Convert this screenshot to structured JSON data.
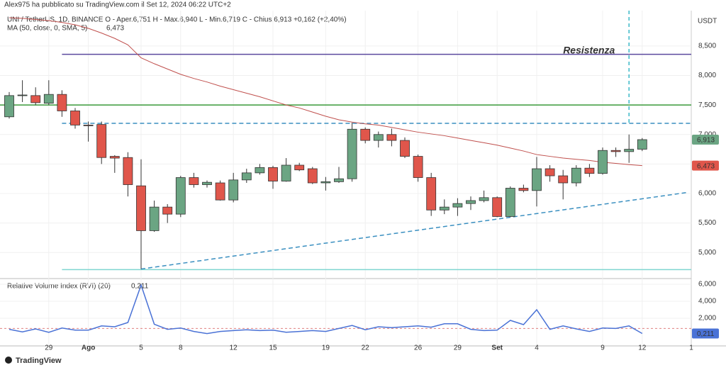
{
  "header": {
    "author": "Alex975 ha pubblicato su TradingView.com il Set 12, 2024 06:22 UTC+2",
    "brand": "TradingView"
  },
  "chart_data": {
    "type": "candlestick",
    "legend": "UNI / TetherUS, 1D, BINANCE  O - Aper.6,751  H - Max.6,940  L - Min.6,719  C - Chius.6,913  +0,162 (+2,40%)",
    "ma_legend": "MA (50, close, 0, SMA, 5)",
    "ma_value_label": "6,473",
    "y_unit": "USDT",
    "categories": [
      null,
      null,
      null,
      "29",
      null,
      null,
      "Ago",
      null,
      null,
      null,
      "5",
      null,
      null,
      "8",
      null,
      null,
      null,
      "12",
      null,
      null,
      "15",
      null,
      null,
      null,
      "19",
      null,
      null,
      "22",
      null,
      null,
      null,
      "26",
      null,
      null,
      "29",
      null,
      null,
      "Set",
      null,
      null,
      "4",
      null,
      null,
      null,
      null,
      "9",
      null,
      null,
      "12"
    ],
    "axis_end_label": "1",
    "open": [
      7.3,
      7.66,
      7.66,
      7.53,
      7.68,
      7.4,
      7.16,
      7.17,
      6.63,
      6.61,
      6.13,
      5.37,
      5.77,
      5.65,
      6.27,
      6.15,
      6.18,
      5.89,
      6.23,
      6.35,
      6.44,
      6.21,
      6.48,
      6.42,
      6.18,
      6.2,
      6.25,
      7.09,
      6.9,
      7.0,
      6.9,
      6.63,
      6.27,
      5.72,
      5.77,
      5.83,
      5.88,
      5.93,
      5.61,
      6.09,
      6.05,
      6.42,
      6.3,
      6.18,
      6.43,
      6.34,
      6.73,
      6.71,
      6.751
    ],
    "high": [
      7.72,
      7.92,
      7.8,
      7.92,
      7.75,
      7.45,
      7.22,
      7.22,
      6.65,
      6.7,
      6.58,
      5.88,
      5.82,
      6.3,
      6.35,
      6.22,
      6.22,
      6.35,
      6.42,
      6.5,
      6.47,
      6.6,
      6.52,
      6.45,
      6.28,
      6.45,
      7.2,
      7.12,
      7.05,
      7.1,
      6.95,
      6.66,
      6.35,
      5.9,
      5.92,
      5.95,
      6.05,
      5.95,
      6.12,
      6.15,
      6.62,
      6.48,
      6.4,
      6.48,
      6.5,
      6.78,
      6.78,
      7.0,
      6.94
    ],
    "low": [
      7.27,
      7.55,
      7.5,
      7.5,
      7.3,
      7.1,
      6.88,
      6.5,
      6.35,
      5.95,
      4.72,
      5.35,
      5.5,
      5.6,
      6.1,
      6.1,
      5.88,
      5.85,
      6.18,
      6.32,
      6.08,
      6.2,
      6.38,
      6.16,
      6.05,
      6.18,
      6.2,
      6.85,
      6.78,
      6.8,
      6.6,
      6.2,
      5.62,
      5.65,
      5.62,
      5.72,
      5.85,
      5.6,
      5.6,
      6.02,
      5.78,
      6.2,
      5.9,
      6.12,
      6.28,
      6.32,
      6.62,
      6.52,
      6.719
    ],
    "close": [
      7.66,
      7.67,
      7.54,
      7.68,
      7.4,
      7.16,
      7.15,
      6.61,
      6.6,
      6.15,
      5.37,
      5.77,
      5.65,
      6.27,
      6.15,
      6.19,
      5.89,
      6.23,
      6.35,
      6.44,
      6.21,
      6.48,
      6.4,
      6.18,
      6.2,
      6.25,
      7.09,
      6.9,
      7.0,
      6.9,
      6.63,
      6.27,
      5.72,
      5.77,
      5.83,
      5.88,
      5.93,
      5.61,
      6.09,
      6.05,
      6.42,
      6.3,
      6.18,
      6.43,
      6.34,
      6.73,
      6.71,
      6.75,
      6.913
    ],
    "ma": [
      8.98,
      8.97,
      8.95,
      8.93,
      8.9,
      8.86,
      8.8,
      8.72,
      8.63,
      8.52,
      8.3,
      8.2,
      8.11,
      8.02,
      7.95,
      7.89,
      7.82,
      7.76,
      7.7,
      7.64,
      7.57,
      7.5,
      7.45,
      7.38,
      7.31,
      7.25,
      7.21,
      7.18,
      7.16,
      7.12,
      7.08,
      7.04,
      7.01,
      6.98,
      6.94,
      6.9,
      6.86,
      6.82,
      6.77,
      6.72,
      6.66,
      6.63,
      6.6,
      6.58,
      6.56,
      6.53,
      6.51,
      6.49,
      6.473
    ],
    "up_color": "#6ba583",
    "down_color": "#e0564b",
    "ma_color": "#c0504d",
    "last_price": {
      "value": 6.913,
      "label": "6,913"
    },
    "ma_last": {
      "value": 6.473,
      "label": "6,473"
    },
    "ylim": [
      4.57,
      9.1
    ],
    "yticks": [
      {
        "value": 5,
        "label": "5,000"
      },
      {
        "value": 5.5,
        "label": "5,500"
      },
      {
        "value": 6,
        "label": "6,000"
      },
      {
        "value": 6.5,
        "label": "6,500"
      },
      {
        "value": 7,
        "label": "7,000"
      },
      {
        "value": 7.5,
        "label": "7,500"
      },
      {
        "value": 8,
        "label": "8,000"
      },
      {
        "value": 8.5,
        "label": "8,500"
      }
    ],
    "grid": true,
    "hlines": [
      {
        "value": 8.36,
        "color": "#5b4a9e",
        "from": 4,
        "dashed": false
      },
      {
        "value": 7.5,
        "color": "#3a9a3a",
        "from": 0,
        "dashed": false
      },
      {
        "value": 7.19,
        "color": "#3a8fc0",
        "from": 4,
        "dashed": true
      },
      {
        "value": 4.71,
        "color": "#7fd6d0",
        "from": 4,
        "dashed": false
      }
    ],
    "annotation": {
      "text": "Resistenza",
      "value": 8.36,
      "at": 42,
      "color": "#a040c0"
    },
    "trendline": {
      "x": [
        10,
        51.5
      ],
      "y": [
        4.72,
        6.02
      ],
      "color": "#3a8fc0"
    },
    "vline": {
      "at": 47,
      "value": 7.19,
      "color": "#3ab8c8"
    },
    "rvi": {
      "name": "Relative Volume Index (RVI) (20)",
      "value_label": "0,211",
      "color": "#4a72d6",
      "level": 0.8,
      "values": [
        0.7,
        0.4,
        0.75,
        0.35,
        0.85,
        0.6,
        0.6,
        1.1,
        1.0,
        1.5,
        5.9,
        1.3,
        0.7,
        0.85,
        0.45,
        0.2,
        0.45,
        0.55,
        0.65,
        0.55,
        0.6,
        0.35,
        0.45,
        0.55,
        0.45,
        0.8,
        1.15,
        0.65,
        1.0,
        0.9,
        1.0,
        1.1,
        0.95,
        1.35,
        1.35,
        0.7,
        0.55,
        0.6,
        1.75,
        1.25,
        3.0,
        0.7,
        1.1,
        0.75,
        0.45,
        0.85,
        0.8,
        1.1,
        0.211
      ],
      "ylim": [
        -1.25,
        6.5
      ],
      "yticks": [
        {
          "value": 2,
          "label": "2,000"
        },
        {
          "value": 4,
          "label": "4,000"
        },
        {
          "value": 6,
          "label": "6,000"
        }
      ]
    }
  }
}
